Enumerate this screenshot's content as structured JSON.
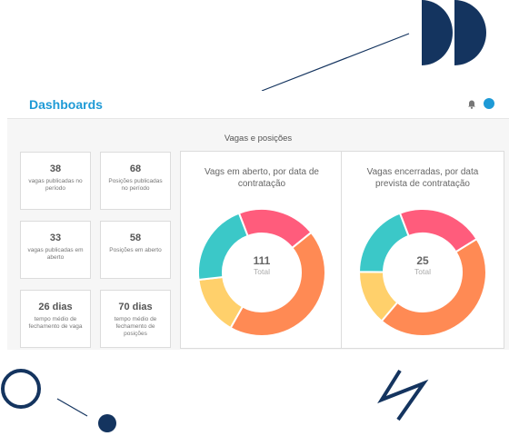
{
  "header": {
    "title": "Dashboards",
    "bell_icon": "bell-icon"
  },
  "section": {
    "title": "Vagas e posições"
  },
  "kpis": [
    {
      "value": "38",
      "label": "vagas publicadas no período"
    },
    {
      "value": "68",
      "label": "Posições publicadas no período"
    },
    {
      "value": "33",
      "label": "vagas publicadas em aberto"
    },
    {
      "value": "58",
      "label": "Posições em aberto"
    },
    {
      "value": "26 dias",
      "label": "tempo médio de fechamento de vaga"
    },
    {
      "value": "70 dias",
      "label": "tempo médio de fechamento de posições"
    }
  ],
  "charts": [
    {
      "title": "Vags em aberto, por data de contratação",
      "center_value": "111",
      "center_label": "Total",
      "chart_data": {
        "type": "pie",
        "donut": true,
        "title": "Vags em aberto, por data de contratação",
        "values": [
          20,
          44,
          15,
          21
        ],
        "colors": [
          "#ff5c7c",
          "#ff8a54",
          "#ffd06b",
          "#3bc8c8"
        ]
      }
    },
    {
      "title": "Vagas encerradas, por data prevista de contratação",
      "center_value": "25",
      "center_label": "Total",
      "chart_data": {
        "type": "pie",
        "donut": true,
        "title": "Vagas encerradas, por data prevista de contratação",
        "values": [
          22,
          45,
          14,
          19
        ],
        "colors": [
          "#ff5c7c",
          "#ff8a54",
          "#ffd06b",
          "#3bc8c8"
        ]
      }
    }
  ],
  "colors": {
    "accent": "#1e9ad6",
    "navy": "#14345f"
  }
}
